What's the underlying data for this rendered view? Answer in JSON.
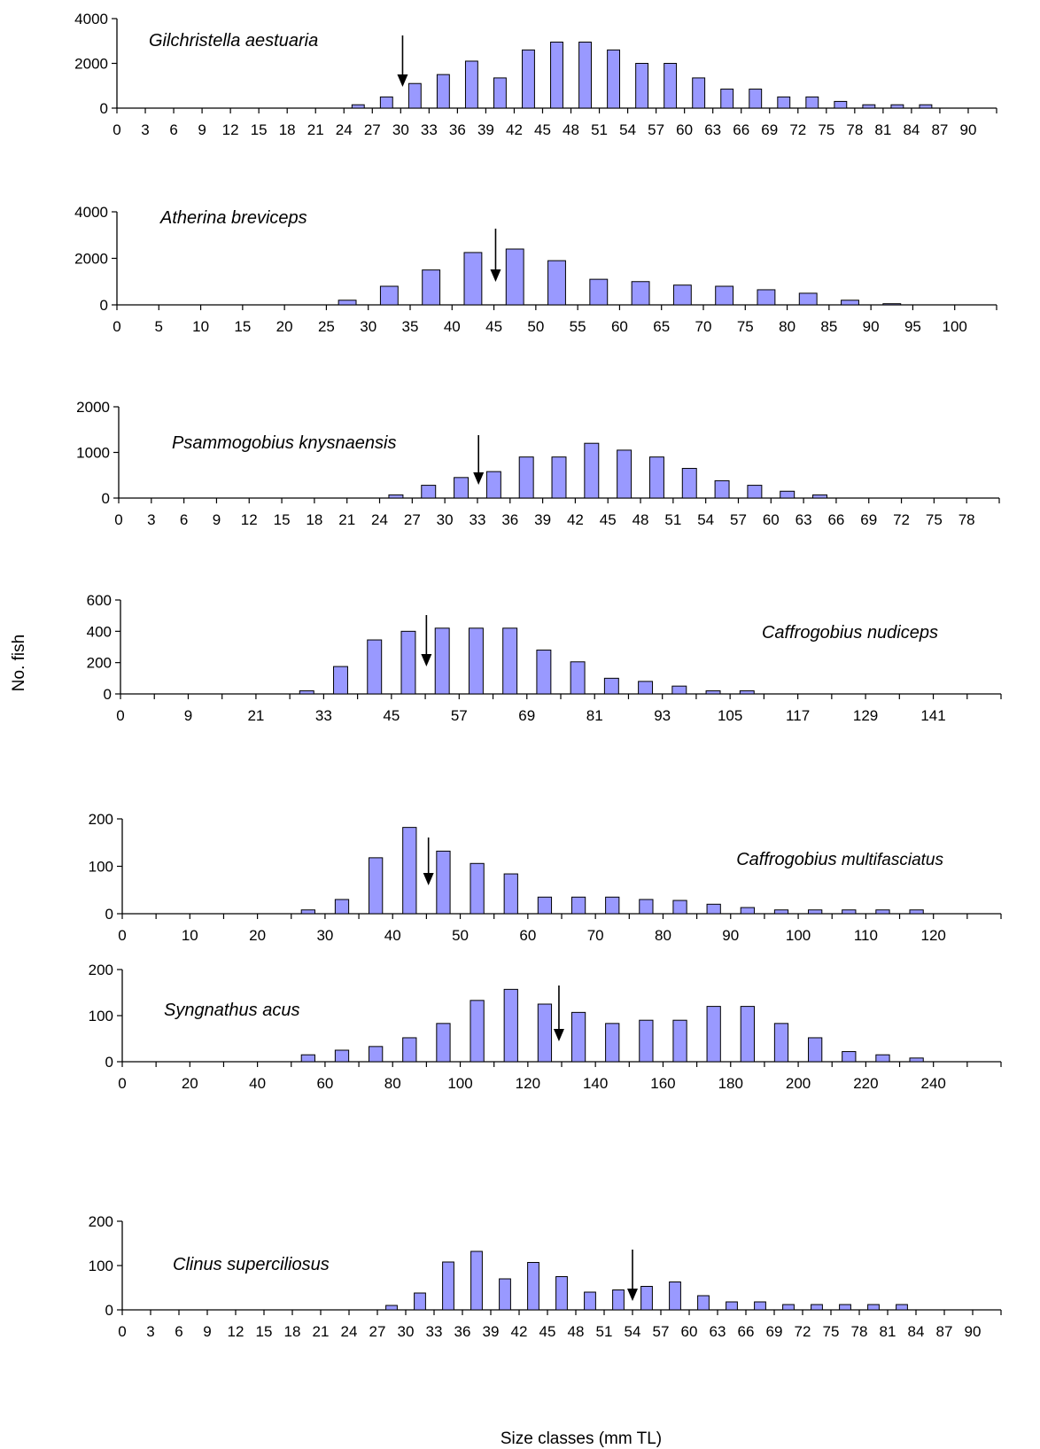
{
  "figure": {
    "ylabel": "No. fish",
    "xlabel": "Size classes (mm  TL)",
    "bar_color": "#9999ff",
    "bar_edge": "#000000"
  },
  "chart_data": [
    {
      "type": "bar",
      "species": "Gilchristella aestuaria",
      "ylim": [
        0,
        4000
      ],
      "yticks": [
        "0",
        "2000",
        "4000"
      ],
      "xtick_labels": [
        "0",
        "3",
        "6",
        "9",
        "12",
        "15",
        "18",
        "21",
        "24",
        "27",
        "30",
        "33",
        "36",
        "39",
        "42",
        "45",
        "48",
        "51",
        "54",
        "57",
        "60",
        "63",
        "66",
        "69",
        "72",
        "75",
        "78",
        "81",
        "84",
        "87",
        "90"
      ],
      "x_min": 0,
      "x_max": 93,
      "x_step": 3,
      "bar_width": 1.3,
      "bars": [
        {
          "x": 25.5,
          "y": 150
        },
        {
          "x": 28.5,
          "y": 500
        },
        {
          "x": 31.5,
          "y": 1100
        },
        {
          "x": 34.5,
          "y": 1500
        },
        {
          "x": 37.5,
          "y": 2100
        },
        {
          "x": 40.5,
          "y": 1350
        },
        {
          "x": 43.5,
          "y": 2600
        },
        {
          "x": 46.5,
          "y": 2950
        },
        {
          "x": 49.5,
          "y": 2950
        },
        {
          "x": 52.5,
          "y": 2600
        },
        {
          "x": 55.5,
          "y": 2000
        },
        {
          "x": 58.5,
          "y": 2000
        },
        {
          "x": 61.5,
          "y": 1350
        },
        {
          "x": 64.5,
          "y": 850
        },
        {
          "x": 67.5,
          "y": 850
        },
        {
          "x": 70.5,
          "y": 500
        },
        {
          "x": 73.5,
          "y": 500
        },
        {
          "x": 76.5,
          "y": 300
        },
        {
          "x": 79.5,
          "y": 150
        },
        {
          "x": 82.5,
          "y": 150
        },
        {
          "x": 85.5,
          "y": 150
        }
      ],
      "arrow_x": 30.2,
      "label_anchor": "left"
    },
    {
      "type": "bar",
      "species": "Atherina breviceps",
      "ylim": [
        0,
        4000
      ],
      "yticks": [
        "0",
        "2000",
        "4000"
      ],
      "xtick_labels": [
        "0",
        "5",
        "10",
        "15",
        "20",
        "25",
        "30",
        "35",
        "40",
        "45",
        "50",
        "55",
        "60",
        "65",
        "70",
        "75",
        "80",
        "85",
        "90",
        "95",
        "100"
      ],
      "x_min": 0,
      "x_max": 105,
      "x_step": 5,
      "bar_width": 2.1,
      "bars": [
        {
          "x": 27.5,
          "y": 200
        },
        {
          "x": 32.5,
          "y": 800
        },
        {
          "x": 37.5,
          "y": 1500
        },
        {
          "x": 42.5,
          "y": 2250
        },
        {
          "x": 47.5,
          "y": 2400
        },
        {
          "x": 52.5,
          "y": 1900
        },
        {
          "x": 57.5,
          "y": 1100
        },
        {
          "x": 62.5,
          "y": 1000
        },
        {
          "x": 67.5,
          "y": 850
        },
        {
          "x": 72.5,
          "y": 800
        },
        {
          "x": 77.5,
          "y": 650
        },
        {
          "x": 82.5,
          "y": 500
        },
        {
          "x": 87.5,
          "y": 200
        },
        {
          "x": 92.5,
          "y": 50
        }
      ],
      "arrow_x": 45.2,
      "label_anchor": "left"
    },
    {
      "type": "bar",
      "species": "Psammogobius knysnaensis",
      "ylim": [
        0,
        2000
      ],
      "yticks": [
        "0",
        "1000",
        "2000"
      ],
      "xtick_labels": [
        "0",
        "3",
        "6",
        "9",
        "12",
        "15",
        "18",
        "21",
        "24",
        "27",
        "30",
        "33",
        "36",
        "39",
        "42",
        "45",
        "48",
        "51",
        "54",
        "57",
        "60",
        "63",
        "66",
        "69",
        "72",
        "75",
        "78"
      ],
      "x_min": 0,
      "x_max": 81,
      "x_step": 3,
      "bar_width": 1.3,
      "bars": [
        {
          "x": 25.5,
          "y": 70
        },
        {
          "x": 28.5,
          "y": 280
        },
        {
          "x": 31.5,
          "y": 450
        },
        {
          "x": 34.5,
          "y": 580
        },
        {
          "x": 37.5,
          "y": 900
        },
        {
          "x": 40.5,
          "y": 900
        },
        {
          "x": 43.5,
          "y": 1200
        },
        {
          "x": 46.5,
          "y": 1050
        },
        {
          "x": 49.5,
          "y": 900
        },
        {
          "x": 52.5,
          "y": 650
        },
        {
          "x": 55.5,
          "y": 380
        },
        {
          "x": 58.5,
          "y": 280
        },
        {
          "x": 61.5,
          "y": 150
        },
        {
          "x": 64.5,
          "y": 70
        }
      ],
      "arrow_x": 33.1,
      "label_anchor": "left"
    },
    {
      "type": "bar",
      "species": "Caffrogobius  nudiceps",
      "ylim": [
        0,
        600
      ],
      "yticks": [
        "0",
        "200",
        "400",
        "600"
      ],
      "xtick_labels": [
        "0",
        "",
        "9",
        "",
        "21",
        "",
        "33",
        "",
        "45",
        "",
        "57",
        "",
        "69",
        "",
        "81",
        "",
        "93",
        "",
        "105",
        "",
        "117",
        "",
        "129",
        "",
        "141",
        ""
      ],
      "x_min": 0,
      "x_max": 156,
      "x_step": 6,
      "bar_width": 2.5,
      "bars": [
        {
          "x": 33,
          "y": 20
        },
        {
          "x": 39,
          "y": 175
        },
        {
          "x": 45,
          "y": 345
        },
        {
          "x": 51,
          "y": 400
        },
        {
          "x": 57,
          "y": 420
        },
        {
          "x": 63,
          "y": 420
        },
        {
          "x": 69,
          "y": 420
        },
        {
          "x": 75,
          "y": 280
        },
        {
          "x": 81,
          "y": 205
        },
        {
          "x": 87,
          "y": 100
        },
        {
          "x": 93,
          "y": 80
        },
        {
          "x": 99,
          "y": 50
        },
        {
          "x": 105,
          "y": 20
        },
        {
          "x": 111,
          "y": 20
        }
      ],
      "arrow_x": 54.2,
      "label_anchor": "right"
    },
    {
      "type": "bar",
      "species": "Caffrogobius",
      "species_suffix": "multifasciatus",
      "ylim": [
        0,
        200
      ],
      "yticks": [
        "0",
        "100",
        "200"
      ],
      "xtick_labels": [
        "0",
        "",
        "10",
        "",
        "20",
        "",
        "30",
        "",
        "40",
        "",
        "50",
        "",
        "60",
        "",
        "70",
        "",
        "80",
        "",
        "90",
        "",
        "100",
        "",
        "110",
        "",
        "120",
        ""
      ],
      "x_min": 0,
      "x_max": 130,
      "x_step": 5,
      "bar_width": 2.0,
      "bars": [
        {
          "x": 27.5,
          "y": 8
        },
        {
          "x": 32.5,
          "y": 30
        },
        {
          "x": 37.5,
          "y": 118
        },
        {
          "x": 42.5,
          "y": 182
        },
        {
          "x": 47.5,
          "y": 132
        },
        {
          "x": 52.5,
          "y": 106
        },
        {
          "x": 57.5,
          "y": 84
        },
        {
          "x": 62.5,
          "y": 35
        },
        {
          "x": 67.5,
          "y": 35
        },
        {
          "x": 72.5,
          "y": 35
        },
        {
          "x": 77.5,
          "y": 30
        },
        {
          "x": 82.5,
          "y": 28
        },
        {
          "x": 87.5,
          "y": 20
        },
        {
          "x": 92.5,
          "y": 13
        },
        {
          "x": 97.5,
          "y": 8
        },
        {
          "x": 102.5,
          "y": 8
        },
        {
          "x": 107.5,
          "y": 8
        },
        {
          "x": 112.5,
          "y": 8
        },
        {
          "x": 117.5,
          "y": 8
        }
      ],
      "arrow_x": 45.3,
      "label_anchor": "right"
    },
    {
      "type": "bar",
      "species": "Syngnathus acus",
      "ylim": [
        0,
        200
      ],
      "yticks": [
        "0",
        "100",
        "200"
      ],
      "xtick_labels": [
        "0",
        "",
        "20",
        "",
        "40",
        "",
        "60",
        "",
        "80",
        "",
        "100",
        "",
        "120",
        "",
        "140",
        "",
        "160",
        "",
        "180",
        "",
        "200",
        "",
        "220",
        "",
        "240",
        ""
      ],
      "x_min": 0,
      "x_max": 260,
      "x_step": 10,
      "bar_width": 4.0,
      "bars": [
        {
          "x": 55,
          "y": 15
        },
        {
          "x": 65,
          "y": 25
        },
        {
          "x": 75,
          "y": 33
        },
        {
          "x": 85,
          "y": 52
        },
        {
          "x": 95,
          "y": 83
        },
        {
          "x": 105,
          "y": 133
        },
        {
          "x": 115,
          "y": 157
        },
        {
          "x": 125,
          "y": 125
        },
        {
          "x": 135,
          "y": 107
        },
        {
          "x": 145,
          "y": 83
        },
        {
          "x": 155,
          "y": 90
        },
        {
          "x": 165,
          "y": 90
        },
        {
          "x": 175,
          "y": 120
        },
        {
          "x": 185,
          "y": 120
        },
        {
          "x": 195,
          "y": 83
        },
        {
          "x": 205,
          "y": 52
        },
        {
          "x": 215,
          "y": 22
        },
        {
          "x": 225,
          "y": 15
        },
        {
          "x": 235,
          "y": 8
        }
      ],
      "arrow_x": 129.2,
      "label_anchor": "left"
    },
    {
      "type": "bar",
      "species": "Clinus superciliosus",
      "ylim": [
        0,
        200
      ],
      "yticks": [
        "0",
        "100",
        "200"
      ],
      "xtick_labels": [
        "0",
        "3",
        "6",
        "9",
        "12",
        "15",
        "18",
        "21",
        "24",
        "27",
        "30",
        "33",
        "36",
        "39",
        "42",
        "45",
        "48",
        "51",
        "54",
        "57",
        "60",
        "63",
        "66",
        "69",
        "72",
        "75",
        "78",
        "81",
        "84",
        "87",
        "90"
      ],
      "x_min": 0,
      "x_max": 93,
      "x_step": 3,
      "bar_width": 1.2,
      "bars": [
        {
          "x": 28.5,
          "y": 10
        },
        {
          "x": 31.5,
          "y": 38
        },
        {
          "x": 34.5,
          "y": 108
        },
        {
          "x": 37.5,
          "y": 132
        },
        {
          "x": 40.5,
          "y": 70
        },
        {
          "x": 43.5,
          "y": 107
        },
        {
          "x": 46.5,
          "y": 75
        },
        {
          "x": 49.5,
          "y": 40
        },
        {
          "x": 52.5,
          "y": 45
        },
        {
          "x": 55.5,
          "y": 53
        },
        {
          "x": 58.5,
          "y": 63
        },
        {
          "x": 61.5,
          "y": 32
        },
        {
          "x": 64.5,
          "y": 18
        },
        {
          "x": 67.5,
          "y": 18
        },
        {
          "x": 70.5,
          "y": 12
        },
        {
          "x": 73.5,
          "y": 12
        },
        {
          "x": 76.5,
          "y": 12
        },
        {
          "x": 79.5,
          "y": 12
        },
        {
          "x": 82.5,
          "y": 12
        }
      ],
      "arrow_x": 54.0,
      "label_anchor": "left"
    }
  ]
}
